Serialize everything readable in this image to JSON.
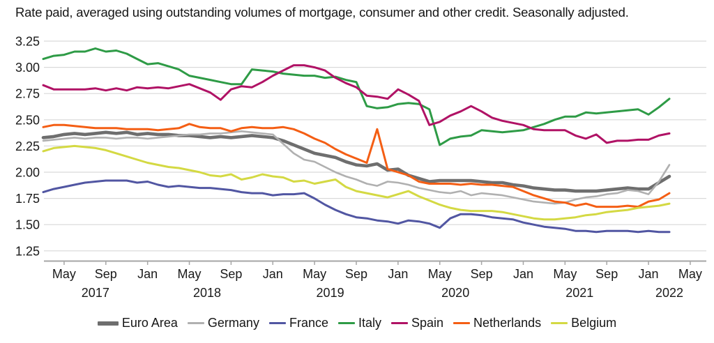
{
  "title": "Rate paid, averaged using outstanding volumes of mortgage, consumer and other credit. Seasonally adjusted.",
  "colors": {
    "euro_area": "#6e6e6e",
    "germany": "#b0b0b0",
    "france": "#5156a2",
    "italy": "#2e9b46",
    "spain": "#b01265",
    "netherlands": "#f45e14",
    "belgium": "#d4d943",
    "gridline": "#d9d9d9",
    "axis": "#a6a6a6",
    "text": "#1a1a1a"
  },
  "chart_data": {
    "type": "line",
    "title": "Rate paid, averaged using outstanding volumes of mortgage, consumer and other credit. Seasonally adjusted.",
    "x_start_month": "2017-03",
    "x_end_month": "2022-03",
    "x_tick_labels": [
      "May",
      "Sep",
      "Jan",
      "May",
      "Sep",
      "Jan",
      "May",
      "Sep",
      "Jan",
      "May",
      "Sep",
      "Jan",
      "May",
      "Sep",
      "Jan",
      "May"
    ],
    "year_labels": [
      "2017",
      "2018",
      "2019",
      "2020",
      "2021",
      "2022"
    ],
    "y_tick_labels": [
      "3.25",
      "3.00",
      "2.75",
      "2.50",
      "2.25",
      "2.00",
      "1.75",
      "1.50",
      "1.25"
    ],
    "ylim": [
      1.25,
      3.25
    ],
    "grid": "horizontal",
    "legend_position": "bottom",
    "series": [
      {
        "name": "Euro Area",
        "color_key": "euro_area",
        "values": [
          2.33,
          2.34,
          2.36,
          2.37,
          2.36,
          2.37,
          2.38,
          2.37,
          2.38,
          2.36,
          2.37,
          2.36,
          2.36,
          2.35,
          2.35,
          2.34,
          2.33,
          2.34,
          2.33,
          2.34,
          2.35,
          2.34,
          2.33,
          2.3,
          2.26,
          2.22,
          2.18,
          2.16,
          2.14,
          2.1,
          2.07,
          2.06,
          2.08,
          2.02,
          2.03,
          1.97,
          1.94,
          1.91,
          1.92,
          1.92,
          1.92,
          1.92,
          1.91,
          1.9,
          1.9,
          1.88,
          1.87,
          1.85,
          1.84,
          1.83,
          1.83,
          1.82,
          1.82,
          1.82,
          1.83,
          1.84,
          1.85,
          1.84,
          1.84,
          1.9,
          1.96
        ]
      },
      {
        "name": "Germany",
        "color_key": "germany",
        "values": [
          2.3,
          2.31,
          2.32,
          2.33,
          2.32,
          2.33,
          2.33,
          2.32,
          2.33,
          2.33,
          2.32,
          2.33,
          2.34,
          2.35,
          2.36,
          2.36,
          2.37,
          2.37,
          2.38,
          2.39,
          2.38,
          2.37,
          2.36,
          2.27,
          2.18,
          2.12,
          2.1,
          2.05,
          2.0,
          1.96,
          1.93,
          1.89,
          1.87,
          1.91,
          1.9,
          1.88,
          1.85,
          1.83,
          1.81,
          1.8,
          1.82,
          1.78,
          1.8,
          1.79,
          1.78,
          1.76,
          1.74,
          1.72,
          1.71,
          1.7,
          1.71,
          1.74,
          1.76,
          1.77,
          1.79,
          1.8,
          1.83,
          1.82,
          1.79,
          1.91,
          2.07
        ]
      },
      {
        "name": "France",
        "color_key": "france",
        "values": [
          1.81,
          1.84,
          1.86,
          1.88,
          1.9,
          1.91,
          1.92,
          1.92,
          1.92,
          1.9,
          1.91,
          1.88,
          1.86,
          1.87,
          1.86,
          1.85,
          1.85,
          1.84,
          1.83,
          1.81,
          1.8,
          1.8,
          1.78,
          1.79,
          1.79,
          1.8,
          1.75,
          1.69,
          1.64,
          1.6,
          1.57,
          1.56,
          1.54,
          1.53,
          1.51,
          1.54,
          1.53,
          1.51,
          1.47,
          1.56,
          1.6,
          1.6,
          1.59,
          1.57,
          1.56,
          1.55,
          1.52,
          1.5,
          1.48,
          1.47,
          1.46,
          1.44,
          1.44,
          1.43,
          1.44,
          1.44,
          1.44,
          1.43,
          1.44,
          1.43,
          1.43
        ]
      },
      {
        "name": "Italy",
        "color_key": "italy",
        "values": [
          3.08,
          3.11,
          3.12,
          3.15,
          3.15,
          3.18,
          3.15,
          3.16,
          3.13,
          3.08,
          3.03,
          3.04,
          3.01,
          2.98,
          2.92,
          2.9,
          2.88,
          2.86,
          2.84,
          2.84,
          2.98,
          2.97,
          2.96,
          2.94,
          2.93,
          2.92,
          2.92,
          2.9,
          2.91,
          2.88,
          2.86,
          2.63,
          2.61,
          2.62,
          2.65,
          2.66,
          2.65,
          2.6,
          2.26,
          2.32,
          2.34,
          2.35,
          2.4,
          2.39,
          2.38,
          2.39,
          2.4,
          2.43,
          2.46,
          2.5,
          2.53,
          2.53,
          2.57,
          2.56,
          2.57,
          2.58,
          2.59,
          2.6,
          2.55,
          2.62,
          2.7
        ]
      },
      {
        "name": "Spain",
        "color_key": "spain",
        "values": [
          2.83,
          2.79,
          2.79,
          2.79,
          2.79,
          2.8,
          2.78,
          2.8,
          2.78,
          2.81,
          2.8,
          2.81,
          2.8,
          2.82,
          2.84,
          2.8,
          2.76,
          2.69,
          2.79,
          2.82,
          2.81,
          2.86,
          2.92,
          2.97,
          3.02,
          3.02,
          3.0,
          2.97,
          2.9,
          2.85,
          2.81,
          2.73,
          2.72,
          2.7,
          2.79,
          2.74,
          2.68,
          2.45,
          2.48,
          2.54,
          2.58,
          2.63,
          2.58,
          2.52,
          2.49,
          2.47,
          2.45,
          2.41,
          2.4,
          2.4,
          2.4,
          2.35,
          2.32,
          2.36,
          2.28,
          2.3,
          2.3,
          2.31,
          2.31,
          2.35,
          2.37
        ]
      },
      {
        "name": "Netherlands",
        "color_key": "netherlands",
        "values": [
          2.43,
          2.45,
          2.45,
          2.44,
          2.43,
          2.42,
          2.42,
          2.42,
          2.41,
          2.41,
          2.41,
          2.4,
          2.41,
          2.42,
          2.46,
          2.43,
          2.42,
          2.42,
          2.39,
          2.42,
          2.43,
          2.42,
          2.42,
          2.43,
          2.41,
          2.37,
          2.32,
          2.28,
          2.22,
          2.17,
          2.13,
          2.09,
          2.41,
          2.03,
          2.0,
          1.97,
          1.91,
          1.89,
          1.89,
          1.89,
          1.88,
          1.89,
          1.88,
          1.88,
          1.87,
          1.86,
          1.82,
          1.78,
          1.75,
          1.72,
          1.71,
          1.68,
          1.7,
          1.67,
          1.67,
          1.67,
          1.68,
          1.67,
          1.72,
          1.74,
          1.8
        ]
      },
      {
        "name": "Belgium",
        "color_key": "belgium",
        "values": [
          2.2,
          2.23,
          2.24,
          2.25,
          2.24,
          2.23,
          2.21,
          2.18,
          2.15,
          2.12,
          2.09,
          2.07,
          2.05,
          2.04,
          2.02,
          2.0,
          1.97,
          1.96,
          1.98,
          1.93,
          1.95,
          1.98,
          1.96,
          1.95,
          1.91,
          1.92,
          1.89,
          1.91,
          1.93,
          1.86,
          1.82,
          1.8,
          1.78,
          1.76,
          1.79,
          1.82,
          1.77,
          1.73,
          1.69,
          1.66,
          1.64,
          1.63,
          1.63,
          1.63,
          1.62,
          1.6,
          1.58,
          1.56,
          1.55,
          1.55,
          1.56,
          1.57,
          1.59,
          1.6,
          1.62,
          1.63,
          1.64,
          1.66,
          1.67,
          1.68,
          1.7
        ]
      }
    ]
  },
  "legend": {
    "items": [
      {
        "label": "Euro Area",
        "color_key": "euro_area",
        "thick": true
      },
      {
        "label": "Germany",
        "color_key": "germany",
        "thick": false
      },
      {
        "label": "France",
        "color_key": "france",
        "thick": false
      },
      {
        "label": "Italy",
        "color_key": "italy",
        "thick": false
      },
      {
        "label": "Spain",
        "color_key": "spain",
        "thick": false
      },
      {
        "label": "Netherlands",
        "color_key": "netherlands",
        "thick": false
      },
      {
        "label": "Belgium",
        "color_key": "belgium",
        "thick": false
      }
    ]
  }
}
